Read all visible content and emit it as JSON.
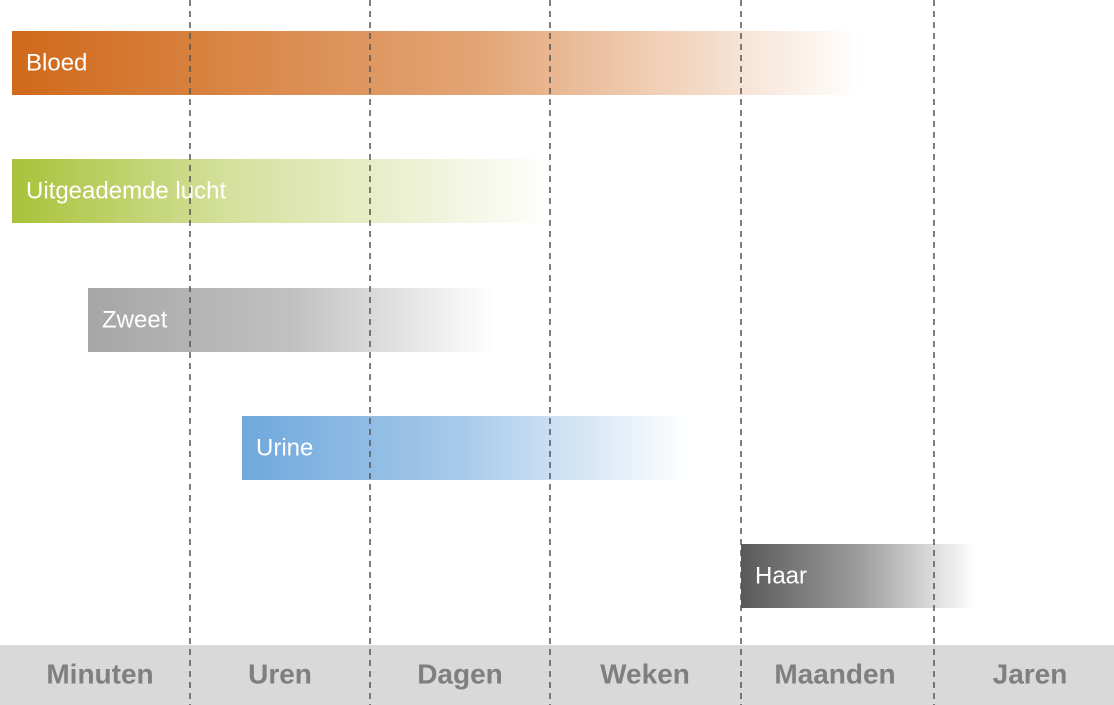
{
  "bars": [
    {
      "label": "Bloed"
    },
    {
      "label": "Uitgeademde lucht"
    },
    {
      "label": "Zweet"
    },
    {
      "label": "Urine"
    },
    {
      "label": "Haar"
    }
  ],
  "timescale": [
    "Minuten",
    "Uren",
    "Dagen",
    "Weken",
    "Maanden",
    "Jaren"
  ]
}
